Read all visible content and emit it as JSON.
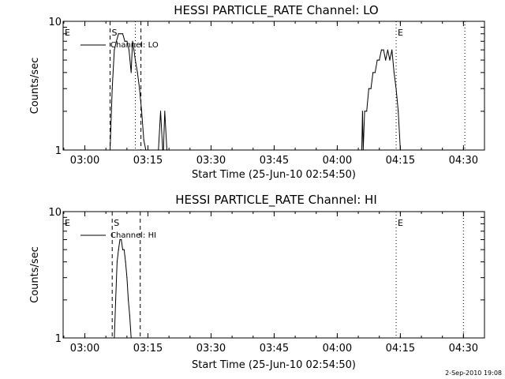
{
  "chart_data": [
    {
      "type": "line",
      "title": "HESSI PARTICLE_RATE Channel: LO",
      "xlabel": "Start Time (25-Jun-10 02:54:50)",
      "ylabel": "Counts/sec",
      "yscale": "log",
      "xlim": [
        "02:54:50",
        "04:35:00"
      ],
      "ylim": [
        1,
        10
      ],
      "x_ticks": [
        "03:00",
        "03:15",
        "03:30",
        "03:45",
        "04:00",
        "04:15",
        "04:30"
      ],
      "y_ticks": [
        "1",
        "10"
      ],
      "legend": "top-left",
      "series": [
        {
          "name": "Channel: LO",
          "x": [
            "03:05:00",
            "03:06:00",
            "03:06:30",
            "03:07:00",
            "03:07:30",
            "03:08:00",
            "03:08:30",
            "03:09:00",
            "03:09:30",
            "03:10:00",
            "03:10:30",
            "03:11:00",
            "03:11:20",
            "03:11:40",
            "03:12:00",
            "03:12:30",
            "03:13:00",
            "03:13:30",
            "03:14:00",
            "03:14:30",
            "03:15:00",
            "03:17:30",
            "03:18:00",
            "03:18:30",
            "03:18:40",
            "03:19:00",
            "03:19:30",
            "03:19:40",
            "03:20:00",
            "04:05:50",
            "04:06:00",
            "04:06:10",
            "04:06:30",
            "04:07:00",
            "04:07:30",
            "04:08:00",
            "04:08:30",
            "04:09:00",
            "04:09:30",
            "04:10:00",
            "04:10:30",
            "04:11:00",
            "04:11:30",
            "04:12:00",
            "04:12:30",
            "04:13:00",
            "04:13:30",
            "04:14:00",
            "04:14:30",
            "04:15:00"
          ],
          "y": [
            1,
            1,
            3,
            6,
            7,
            8,
            8,
            8,
            7,
            7,
            6,
            4,
            7,
            6,
            5,
            4,
            3,
            2,
            1.2,
            1,
            1,
            1,
            2,
            1,
            1,
            2,
            1,
            1,
            1,
            1,
            2,
            1,
            2,
            2,
            3,
            3,
            4,
            4,
            5,
            5,
            6,
            6,
            5,
            6,
            5,
            6,
            4,
            3,
            2,
            1
          ]
        }
      ],
      "markers": [
        {
          "label": "E",
          "x": "02:54:50",
          "style": "none"
        },
        {
          "label": "S",
          "x": "03:06:00",
          "style": "dashed"
        },
        {
          "label": "",
          "x": "03:12:00",
          "style": "dotted"
        },
        {
          "label": "",
          "x": "03:13:20",
          "style": "dashed"
        },
        {
          "label": "E",
          "x": "04:14:00",
          "style": "dotted"
        },
        {
          "label": "",
          "x": "04:30:20",
          "style": "dotted"
        }
      ]
    },
    {
      "type": "line",
      "title": "HESSI PARTICLE_RATE Channel: HI",
      "xlabel": "Start Time (25-Jun-10 02:54:50)",
      "ylabel": "Counts/sec",
      "yscale": "log",
      "xlim": [
        "02:54:50",
        "04:35:00"
      ],
      "ylim": [
        1,
        10
      ],
      "x_ticks": [
        "03:00",
        "03:15",
        "03:30",
        "03:45",
        "04:00",
        "04:15",
        "04:30"
      ],
      "y_ticks": [
        "1",
        "10"
      ],
      "legend": "top-left",
      "series": [
        {
          "name": "Channel: HI",
          "x": [
            "03:07:00",
            "03:07:20",
            "03:07:40",
            "03:08:00",
            "03:08:20",
            "03:08:40",
            "03:09:00",
            "03:09:20",
            "03:09:40",
            "03:10:00",
            "03:10:20",
            "03:10:40",
            "03:11:00",
            "03:11:20"
          ],
          "y": [
            1,
            2,
            4,
            5,
            6,
            6,
            5,
            5,
            4,
            3,
            2,
            1.5,
            1,
            1
          ]
        }
      ],
      "markers": [
        {
          "label": "E",
          "x": "02:54:50",
          "style": "none"
        },
        {
          "label": "S",
          "x": "03:06:30",
          "style": "dashed"
        },
        {
          "label": "",
          "x": "03:13:10",
          "style": "dashed"
        },
        {
          "label": "E",
          "x": "04:14:00",
          "style": "dotted"
        },
        {
          "label": "",
          "x": "04:30:00",
          "style": "dotted"
        }
      ]
    }
  ],
  "footer": {
    "timestamp": "2-Sep-2010 19:08"
  }
}
